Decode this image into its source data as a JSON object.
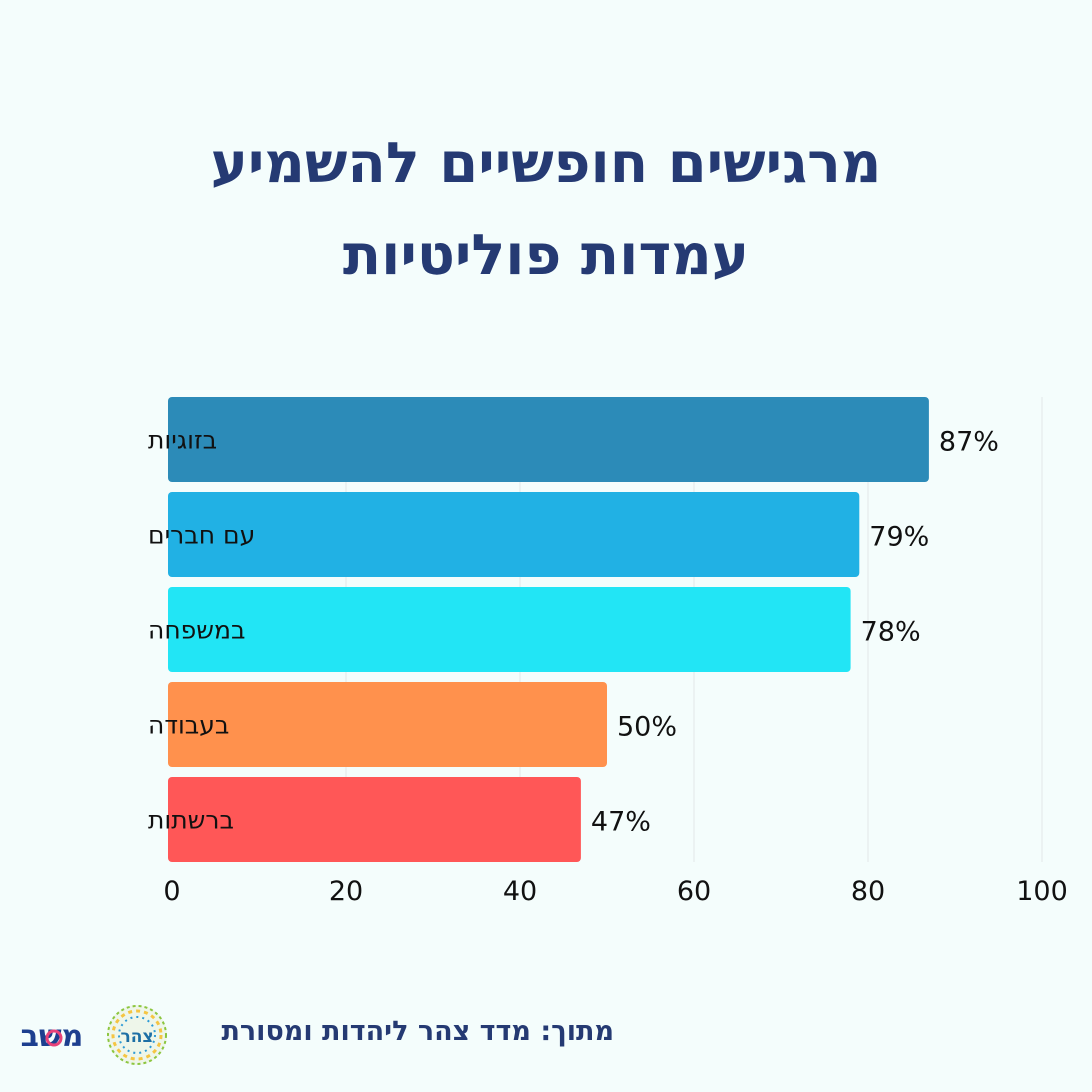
{
  "title_lines": [
    "מרגישים חופשיים להשמיע",
    "עמדות פוליטיות"
  ],
  "chart_data": {
    "type": "bar",
    "orientation": "horizontal",
    "categories": [
      "בזוגיות",
      "עם חברים",
      "במשפחה",
      "בעבודה",
      "ברשתות"
    ],
    "values": [
      87,
      79,
      78,
      50,
      47
    ],
    "value_labels": [
      "87%",
      "79%",
      "78%",
      "50%",
      "47%"
    ],
    "xlim": [
      0,
      100
    ],
    "xticks": [
      "0",
      "20",
      "40",
      "60",
      "80",
      "100"
    ],
    "grid": true,
    "colors": [
      "#2c8bb8",
      "#21b1e4",
      "#22e5f5",
      "#ff914d",
      "#ff5757"
    ]
  },
  "footer": {
    "source": "מתוך: מדד צהר ליהדות ומסורת",
    "tzohar_logo_text": "צהר",
    "mashav_logo_text": "משב"
  },
  "colors": {
    "title": "#253a73",
    "background": "#f4fdfc",
    "grid": "#e2e6e8"
  }
}
